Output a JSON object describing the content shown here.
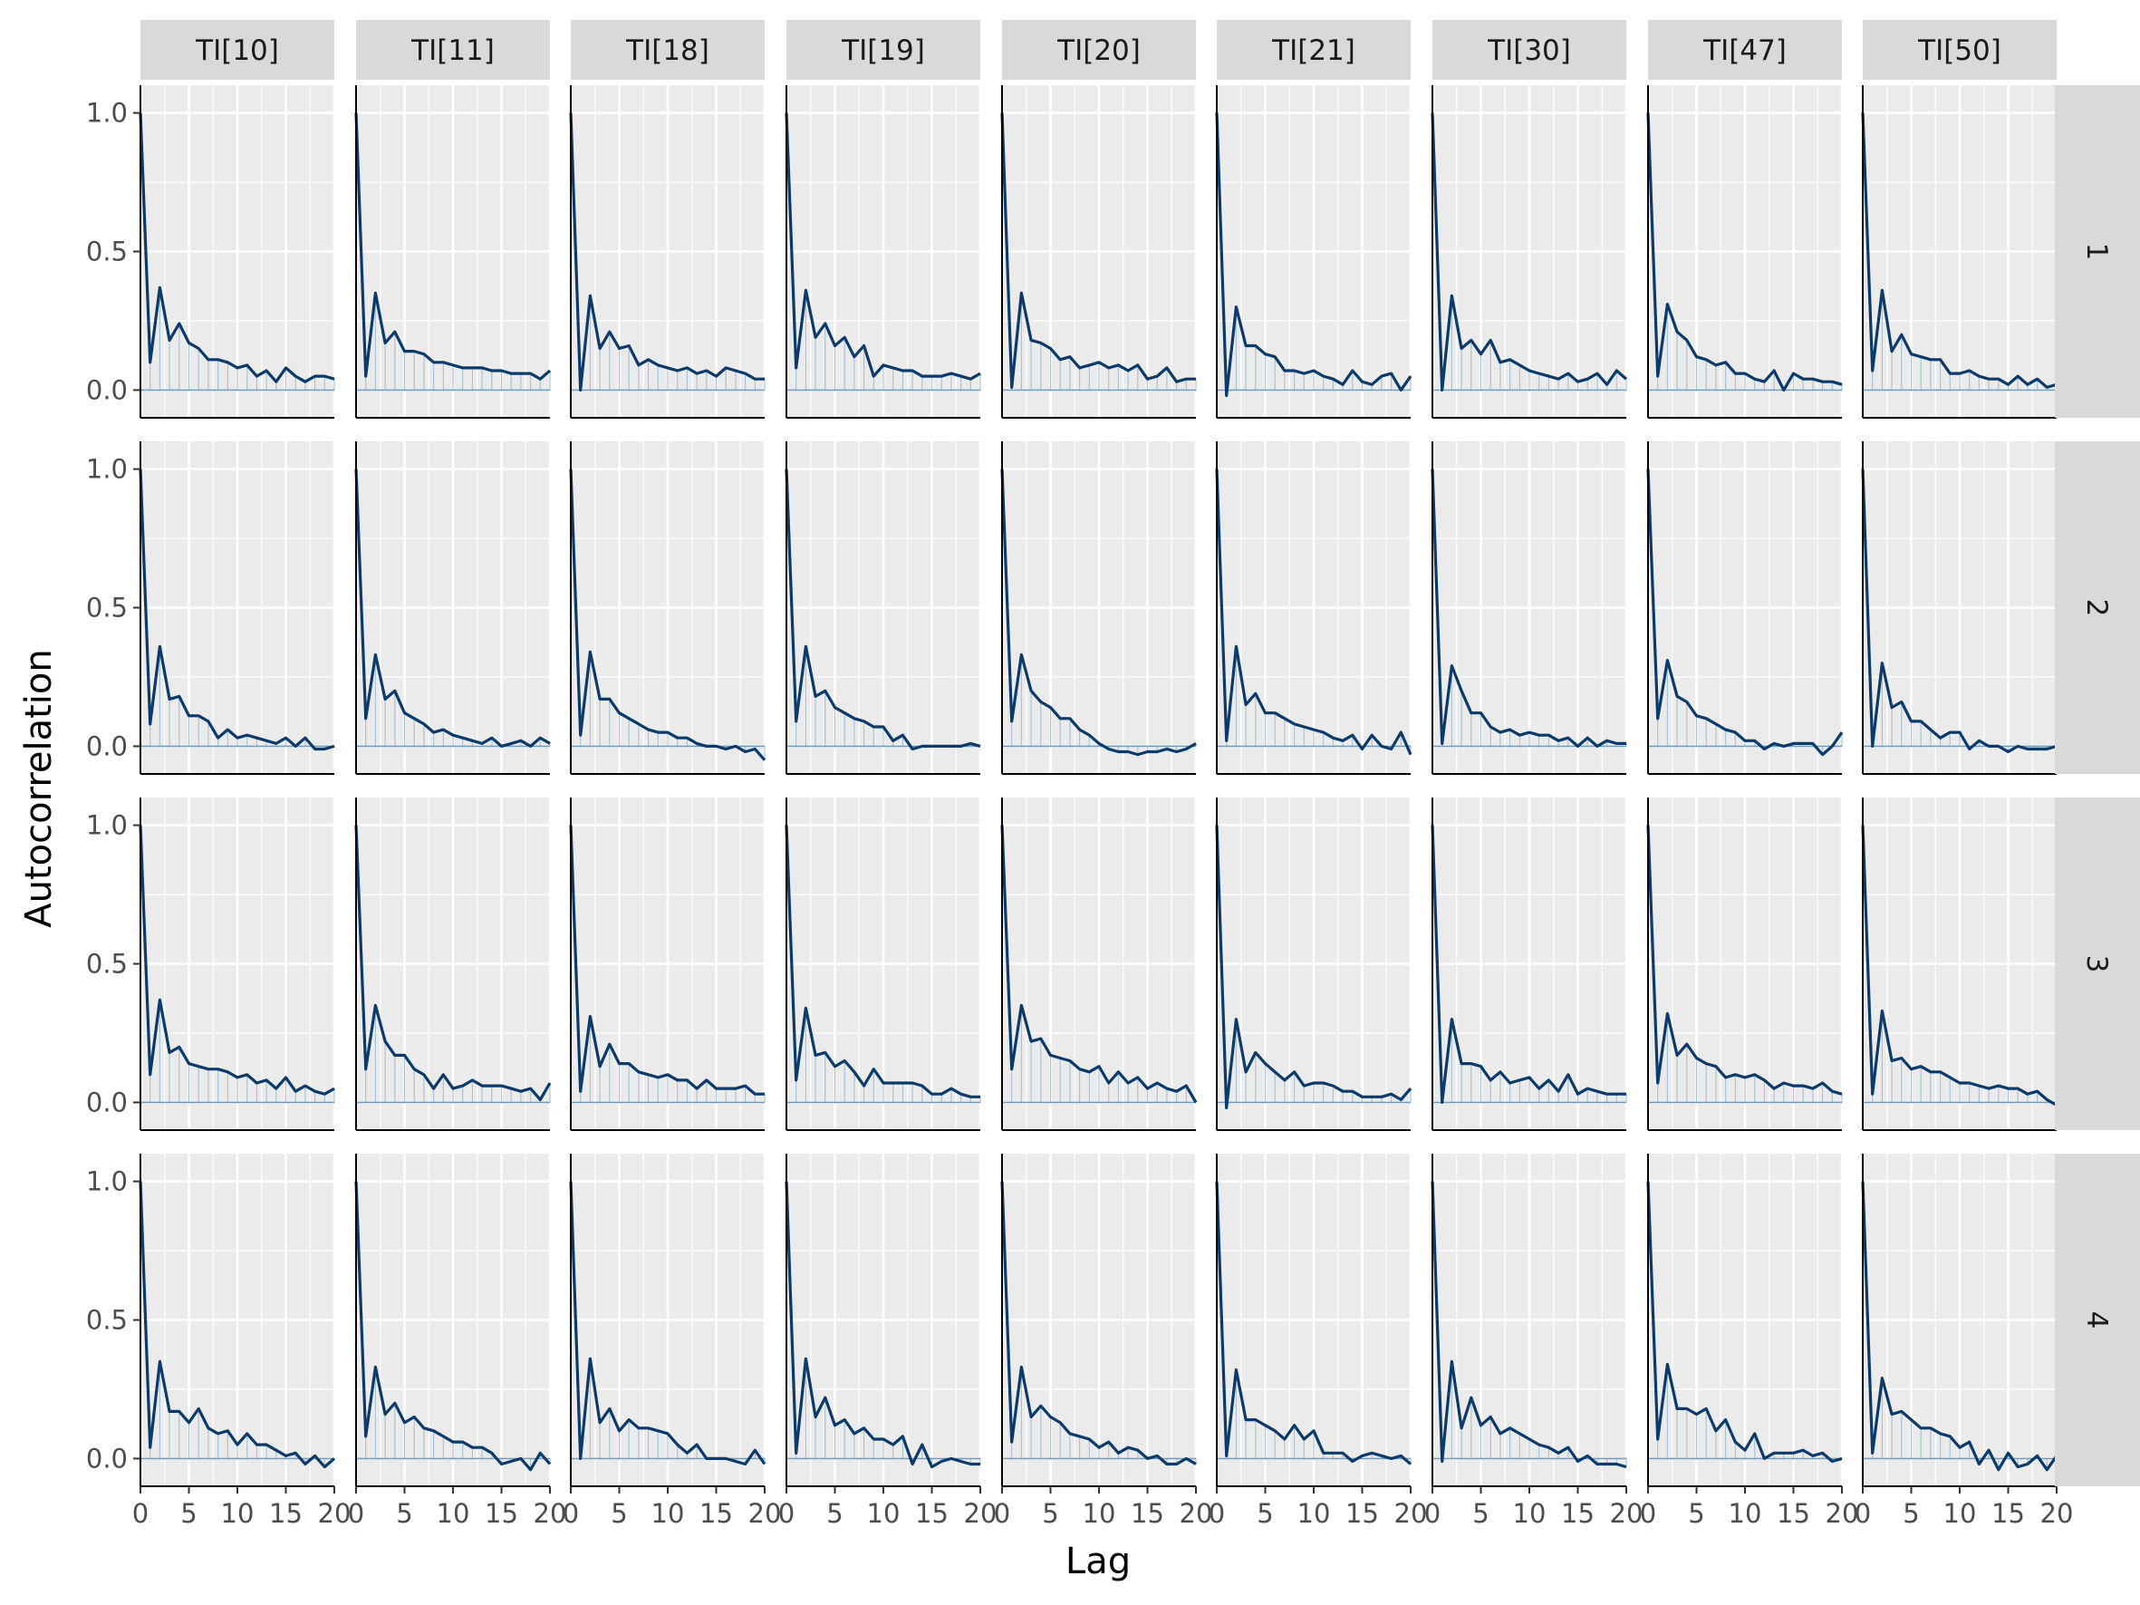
{
  "chart_data": {
    "type": "line",
    "xlabel": "Lag",
    "ylabel": "Autocorrelation",
    "xlim": [
      0,
      20
    ],
    "ylim": [
      -0.1,
      1.1
    ],
    "x_ticks": [
      0,
      5,
      10,
      15,
      20
    ],
    "y_ticks": [
      0.0,
      0.5,
      1.0
    ],
    "y_tick_labels": [
      "0.0",
      "0.5",
      "1.0"
    ],
    "grid": true,
    "column_facets": [
      "TI[10]",
      "TI[11]",
      "TI[18]",
      "TI[19]",
      "TI[20]",
      "TI[21]",
      "TI[30]",
      "TI[47]",
      "TI[50]"
    ],
    "row_facets": [
      "1",
      "2",
      "3",
      "4"
    ],
    "colors": {
      "line": "#0b3a6b",
      "bars": "#a9c4d6",
      "zero_line": "#6f9ab8",
      "panel_bg": "#ebebeb",
      "grid": "#ffffff",
      "strip_bg": "#d9d9d9",
      "text": "#4d4d4d"
    },
    "x": [
      0,
      1,
      2,
      3,
      4,
      5,
      6,
      7,
      8,
      9,
      10,
      11,
      12,
      13,
      14,
      15,
      16,
      17,
      18,
      19,
      20
    ],
    "panels": [
      [
        [
          1.0,
          0.1,
          0.37,
          0.18,
          0.24,
          0.17,
          0.15,
          0.11,
          0.11,
          0.1,
          0.08,
          0.09,
          0.05,
          0.07,
          0.03,
          0.08,
          0.05,
          0.03,
          0.05,
          0.05,
          0.04
        ],
        [
          1.0,
          0.05,
          0.35,
          0.17,
          0.21,
          0.14,
          0.14,
          0.13,
          0.1,
          0.1,
          0.09,
          0.08,
          0.08,
          0.08,
          0.07,
          0.07,
          0.06,
          0.06,
          0.06,
          0.04,
          0.07
        ],
        [
          1.0,
          0.0,
          0.34,
          0.15,
          0.21,
          0.15,
          0.16,
          0.09,
          0.11,
          0.09,
          0.08,
          0.07,
          0.08,
          0.06,
          0.07,
          0.05,
          0.08,
          0.07,
          0.06,
          0.04,
          0.04
        ],
        [
          1.0,
          0.08,
          0.36,
          0.19,
          0.24,
          0.16,
          0.19,
          0.12,
          0.16,
          0.05,
          0.09,
          0.08,
          0.07,
          0.07,
          0.05,
          0.05,
          0.05,
          0.06,
          0.05,
          0.04,
          0.06
        ],
        [
          1.0,
          0.01,
          0.35,
          0.18,
          0.17,
          0.15,
          0.11,
          0.12,
          0.08,
          0.09,
          0.1,
          0.08,
          0.09,
          0.07,
          0.09,
          0.04,
          0.05,
          0.08,
          0.03,
          0.04,
          0.04
        ],
        [
          1.0,
          -0.02,
          0.3,
          0.16,
          0.16,
          0.13,
          0.12,
          0.07,
          0.07,
          0.06,
          0.07,
          0.05,
          0.04,
          0.02,
          0.07,
          0.03,
          0.02,
          0.05,
          0.06,
          0.0,
          0.05
        ],
        [
          1.0,
          0.0,
          0.34,
          0.15,
          0.18,
          0.13,
          0.18,
          0.1,
          0.11,
          0.09,
          0.07,
          0.06,
          0.05,
          0.04,
          0.06,
          0.03,
          0.04,
          0.06,
          0.02,
          0.07,
          0.04
        ],
        [
          1.0,
          0.05,
          0.31,
          0.21,
          0.18,
          0.12,
          0.11,
          0.09,
          0.1,
          0.06,
          0.06,
          0.04,
          0.03,
          0.07,
          0.0,
          0.06,
          0.04,
          0.04,
          0.03,
          0.03,
          0.02
        ],
        [
          1.0,
          0.07,
          0.36,
          0.14,
          0.2,
          0.13,
          0.12,
          0.11,
          0.11,
          0.06,
          0.06,
          0.07,
          0.05,
          0.04,
          0.04,
          0.02,
          0.05,
          0.02,
          0.04,
          0.01,
          0.02
        ]
      ],
      [
        [
          1.0,
          0.08,
          0.36,
          0.17,
          0.18,
          0.11,
          0.11,
          0.09,
          0.03,
          0.06,
          0.03,
          0.04,
          0.03,
          0.02,
          0.01,
          0.03,
          0.0,
          0.03,
          -0.01,
          -0.01,
          0.0
        ],
        [
          1.0,
          0.1,
          0.33,
          0.17,
          0.2,
          0.12,
          0.1,
          0.08,
          0.05,
          0.06,
          0.04,
          0.03,
          0.02,
          0.01,
          0.03,
          0.0,
          0.01,
          0.02,
          0.0,
          0.03,
          0.01
        ],
        [
          1.0,
          0.04,
          0.34,
          0.17,
          0.17,
          0.12,
          0.1,
          0.08,
          0.06,
          0.05,
          0.05,
          0.03,
          0.03,
          0.01,
          0.0,
          0.0,
          -0.01,
          0.0,
          -0.02,
          -0.01,
          -0.05
        ],
        [
          1.0,
          0.09,
          0.36,
          0.18,
          0.2,
          0.14,
          0.12,
          0.1,
          0.09,
          0.07,
          0.07,
          0.02,
          0.04,
          -0.01,
          0.0,
          0.0,
          0.0,
          0.0,
          0.0,
          0.01,
          0.0
        ],
        [
          1.0,
          0.09,
          0.33,
          0.2,
          0.16,
          0.14,
          0.1,
          0.1,
          0.06,
          0.04,
          0.01,
          -0.01,
          -0.02,
          -0.02,
          -0.03,
          -0.02,
          -0.02,
          -0.01,
          -0.02,
          -0.01,
          0.01
        ],
        [
          1.0,
          0.02,
          0.36,
          0.15,
          0.19,
          0.12,
          0.12,
          0.1,
          0.08,
          0.07,
          0.06,
          0.05,
          0.03,
          0.02,
          0.04,
          -0.01,
          0.04,
          0.0,
          -0.01,
          0.05,
          -0.03
        ],
        [
          1.0,
          0.01,
          0.29,
          0.2,
          0.12,
          0.12,
          0.07,
          0.05,
          0.06,
          0.04,
          0.05,
          0.04,
          0.04,
          0.02,
          0.03,
          0.0,
          0.03,
          0.0,
          0.02,
          0.01,
          0.01
        ],
        [
          1.0,
          0.1,
          0.31,
          0.18,
          0.16,
          0.11,
          0.1,
          0.08,
          0.06,
          0.05,
          0.02,
          0.02,
          -0.01,
          0.01,
          0.0,
          0.01,
          0.01,
          0.01,
          -0.03,
          0.0,
          0.05
        ],
        [
          1.0,
          0.0,
          0.3,
          0.14,
          0.16,
          0.09,
          0.09,
          0.06,
          0.03,
          0.05,
          0.05,
          -0.01,
          0.02,
          0.0,
          0.0,
          -0.02,
          0.0,
          -0.01,
          -0.01,
          -0.01,
          0.0
        ]
      ],
      [
        [
          1.0,
          0.1,
          0.37,
          0.18,
          0.2,
          0.14,
          0.13,
          0.12,
          0.12,
          0.11,
          0.09,
          0.1,
          0.07,
          0.08,
          0.05,
          0.09,
          0.04,
          0.06,
          0.04,
          0.03,
          0.05
        ],
        [
          1.0,
          0.12,
          0.35,
          0.22,
          0.17,
          0.17,
          0.12,
          0.1,
          0.05,
          0.1,
          0.05,
          0.06,
          0.08,
          0.06,
          0.06,
          0.06,
          0.05,
          0.04,
          0.05,
          0.01,
          0.07
        ],
        [
          1.0,
          0.04,
          0.31,
          0.13,
          0.21,
          0.14,
          0.14,
          0.11,
          0.1,
          0.09,
          0.1,
          0.08,
          0.08,
          0.05,
          0.08,
          0.05,
          0.05,
          0.05,
          0.06,
          0.03,
          0.03
        ],
        [
          1.0,
          0.08,
          0.34,
          0.17,
          0.18,
          0.13,
          0.15,
          0.11,
          0.06,
          0.12,
          0.07,
          0.07,
          0.07,
          0.07,
          0.06,
          0.03,
          0.03,
          0.05,
          0.03,
          0.02,
          0.02
        ],
        [
          1.0,
          0.12,
          0.35,
          0.22,
          0.23,
          0.17,
          0.16,
          0.15,
          0.12,
          0.11,
          0.13,
          0.07,
          0.11,
          0.07,
          0.09,
          0.05,
          0.07,
          0.05,
          0.04,
          0.06,
          0.0
        ],
        [
          1.0,
          -0.02,
          0.3,
          0.11,
          0.18,
          0.14,
          0.11,
          0.08,
          0.11,
          0.06,
          0.07,
          0.07,
          0.06,
          0.04,
          0.04,
          0.02,
          0.02,
          0.02,
          0.03,
          0.01,
          0.05
        ],
        [
          1.0,
          0.0,
          0.3,
          0.14,
          0.14,
          0.13,
          0.08,
          0.11,
          0.07,
          0.08,
          0.09,
          0.05,
          0.08,
          0.04,
          0.1,
          0.03,
          0.05,
          0.04,
          0.03,
          0.03,
          0.03
        ],
        [
          1.0,
          0.07,
          0.32,
          0.17,
          0.21,
          0.16,
          0.14,
          0.13,
          0.09,
          0.1,
          0.09,
          0.1,
          0.08,
          0.05,
          0.07,
          0.06,
          0.06,
          0.05,
          0.07,
          0.04,
          0.03
        ],
        [
          1.0,
          0.03,
          0.33,
          0.15,
          0.16,
          0.12,
          0.13,
          0.11,
          0.11,
          0.09,
          0.07,
          0.07,
          0.06,
          0.05,
          0.06,
          0.05,
          0.05,
          0.03,
          0.04,
          0.01,
          -0.01
        ]
      ],
      [
        [
          1.0,
          0.04,
          0.35,
          0.17,
          0.17,
          0.13,
          0.18,
          0.11,
          0.09,
          0.1,
          0.05,
          0.09,
          0.05,
          0.05,
          0.03,
          0.01,
          0.02,
          -0.02,
          0.01,
          -0.03,
          0.0
        ],
        [
          1.0,
          0.08,
          0.33,
          0.16,
          0.2,
          0.13,
          0.15,
          0.11,
          0.1,
          0.08,
          0.06,
          0.06,
          0.04,
          0.04,
          0.02,
          -0.02,
          -0.01,
          0.0,
          -0.04,
          0.02,
          -0.02
        ],
        [
          1.0,
          0.0,
          0.36,
          0.13,
          0.18,
          0.1,
          0.14,
          0.11,
          0.11,
          0.1,
          0.09,
          0.05,
          0.02,
          0.05,
          0.0,
          0.0,
          0.0,
          -0.01,
          -0.02,
          0.03,
          -0.02
        ],
        [
          1.0,
          0.02,
          0.36,
          0.15,
          0.22,
          0.12,
          0.14,
          0.09,
          0.11,
          0.07,
          0.07,
          0.05,
          0.08,
          -0.02,
          0.05,
          -0.03,
          -0.01,
          0.0,
          -0.01,
          -0.02,
          -0.02
        ],
        [
          1.0,
          0.06,
          0.33,
          0.15,
          0.19,
          0.15,
          0.13,
          0.09,
          0.08,
          0.07,
          0.04,
          0.06,
          0.02,
          0.04,
          0.03,
          0.0,
          0.01,
          -0.02,
          -0.02,
          0.0,
          -0.02
        ],
        [
          1.0,
          0.01,
          0.32,
          0.14,
          0.14,
          0.12,
          0.1,
          0.07,
          0.12,
          0.07,
          0.1,
          0.02,
          0.02,
          0.02,
          -0.01,
          0.01,
          0.02,
          0.01,
          0.0,
          0.01,
          -0.02
        ],
        [
          1.0,
          -0.01,
          0.35,
          0.11,
          0.22,
          0.12,
          0.15,
          0.09,
          0.11,
          0.09,
          0.07,
          0.05,
          0.04,
          0.02,
          0.04,
          -0.01,
          0.01,
          -0.02,
          -0.02,
          -0.02,
          -0.03
        ],
        [
          1.0,
          0.07,
          0.34,
          0.18,
          0.18,
          0.16,
          0.18,
          0.1,
          0.14,
          0.06,
          0.03,
          0.09,
          0.0,
          0.02,
          0.02,
          0.02,
          0.03,
          0.01,
          0.02,
          -0.01,
          0.0
        ],
        [
          1.0,
          0.02,
          0.29,
          0.16,
          0.17,
          0.14,
          0.11,
          0.11,
          0.09,
          0.08,
          0.04,
          0.06,
          -0.02,
          0.03,
          -0.04,
          0.02,
          -0.03,
          -0.02,
          0.01,
          -0.04,
          0.01
        ]
      ]
    ]
  }
}
